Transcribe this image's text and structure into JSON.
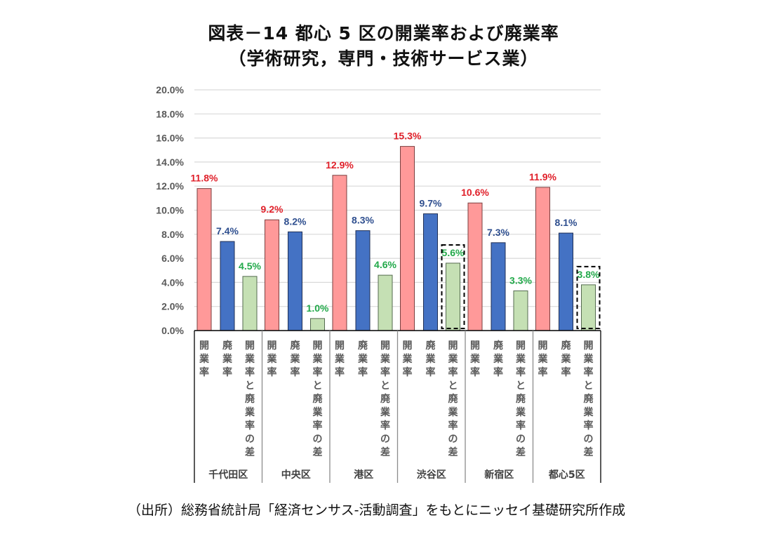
{
  "chart_data": {
    "type": "bar",
    "title": "図表－14  都心 5 区の開業率および廃業率",
    "subtitle": "（学術研究，専門・技術サービス業）",
    "xlabel": "",
    "ylabel": "",
    "ylim": [
      0,
      20
    ],
    "yticks": [
      "0.0%",
      "2.0%",
      "4.0%",
      "6.0%",
      "8.0%",
      "10.0%",
      "12.0%",
      "14.0%",
      "16.0%",
      "18.0%",
      "20.0%"
    ],
    "grid": true,
    "legend": "none",
    "groups": [
      "千代田区",
      "中央区",
      "港区",
      "渋谷区",
      "新宿区",
      "都心5区"
    ],
    "categories": [
      "開業率",
      "廃業率",
      "開業率と廃業率の差"
    ],
    "series": [
      {
        "name": "開業率",
        "color": "#ff9999",
        "label_color": "#e0202a",
        "values": [
          11.8,
          9.2,
          12.9,
          15.3,
          10.6,
          11.9
        ]
      },
      {
        "name": "廃業率",
        "color": "#4472c4",
        "label_color": "#2f4f8f",
        "values": [
          7.4,
          8.2,
          8.3,
          9.7,
          7.3,
          8.1
        ]
      },
      {
        "name": "開業率と廃業率の差",
        "color": "#c5e0b4",
        "label_color": "#22a94a",
        "values": [
          4.5,
          1.0,
          4.6,
          5.6,
          3.3,
          3.8
        ]
      }
    ],
    "data_labels": [
      [
        "11.8%",
        "7.4%",
        "4.5%"
      ],
      [
        "9.2%",
        "8.2%",
        "1.0%"
      ],
      [
        "12.9%",
        "8.3%",
        "4.6%"
      ],
      [
        "15.3%",
        "9.7%",
        "5.6%"
      ],
      [
        "10.6%",
        "7.3%",
        "3.3%"
      ],
      [
        "11.9%",
        "8.1%",
        "3.8%"
      ]
    ],
    "highlighted": [
      {
        "group": "渋谷区",
        "series": "開業率と廃業率の差",
        "style": "dashed-box"
      },
      {
        "group": "都心5区",
        "series": "開業率と廃業率の差",
        "style": "dashed-box"
      }
    ],
    "source": "（出所）総務省統計局「経済センサス-活動調査」をもとにニッセイ基礎研究所作成"
  }
}
